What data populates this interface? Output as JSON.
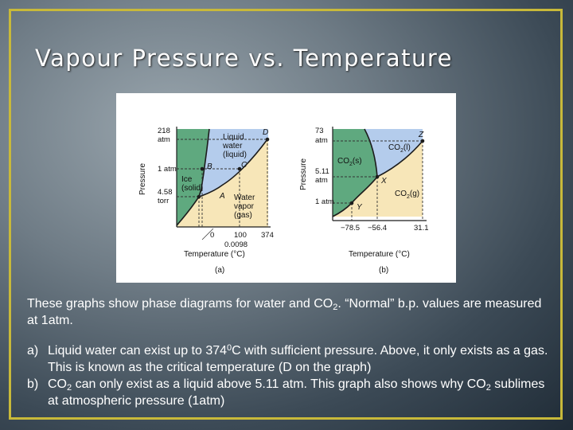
{
  "slide": {
    "title": "Vapour Pressure vs. Temperature"
  },
  "colors": {
    "frame": "#c8b93a",
    "solid_region": "#5fa97f",
    "liquid_region": "#b4ccec",
    "gas_region": "#f7e6b8",
    "curve": "#1c1c1c"
  },
  "diagram_a": {
    "caption": "(a)",
    "y_axis_label": "Pressure",
    "x_axis_label": "Temperature (°C)",
    "y_ticks": [
      "218",
      "atm",
      "1 atm",
      "4.58",
      "torr"
    ],
    "x_ticks": [
      "0",
      "0.0098",
      "100",
      "374"
    ],
    "points": [
      "D",
      "B",
      "C",
      "A"
    ],
    "regions": {
      "liquid": [
        "Liquid",
        "water",
        "(liquid)"
      ],
      "solid": [
        "Ice",
        "(solid)"
      ],
      "gas": [
        "Water",
        "vapor",
        "(gas)"
      ]
    }
  },
  "diagram_b": {
    "caption": "(b)",
    "y_axis_label": "Pressure",
    "x_axis_label": "Temperature (°C)",
    "y_ticks": [
      "73",
      "atm",
      "5.11",
      "atm",
      "1 atm"
    ],
    "x_ticks": [
      "−78.5",
      "−56.4",
      "31.1"
    ],
    "points": [
      "Z",
      "X",
      "Y"
    ],
    "regions": {
      "liquid_base": "CO",
      "liquid_sub": "2",
      "liquid_state": "(l)",
      "solid_base": "CO",
      "solid_sub": "2",
      "solid_state": "(s)",
      "gas_base": "CO",
      "gas_sub": "2",
      "gas_state": "(g)"
    }
  },
  "body": {
    "intro_part1": "These graphs show phase diagrams for water and CO",
    "intro_sub": "2",
    "intro_part2": ". “Normal” b.p. values are measured at 1atm.",
    "item_a_mark": "a)",
    "item_a_part1": "Liquid water can exist up to 374",
    "item_a_sup": "0",
    "item_a_part2": "C with sufficient pressure. Above, it only exists as a gas.  This is known as the critical temperature (D on the graph)",
    "item_b_mark": "b)",
    "item_b_part1": "CO",
    "item_b_sub1": "2",
    "item_b_part2": " can only exist as a liquid above 5.11 atm. This graph also shows why CO",
    "item_b_sub2": "2",
    "item_b_part3": " sublimes at atmospheric pressure (1atm)"
  }
}
